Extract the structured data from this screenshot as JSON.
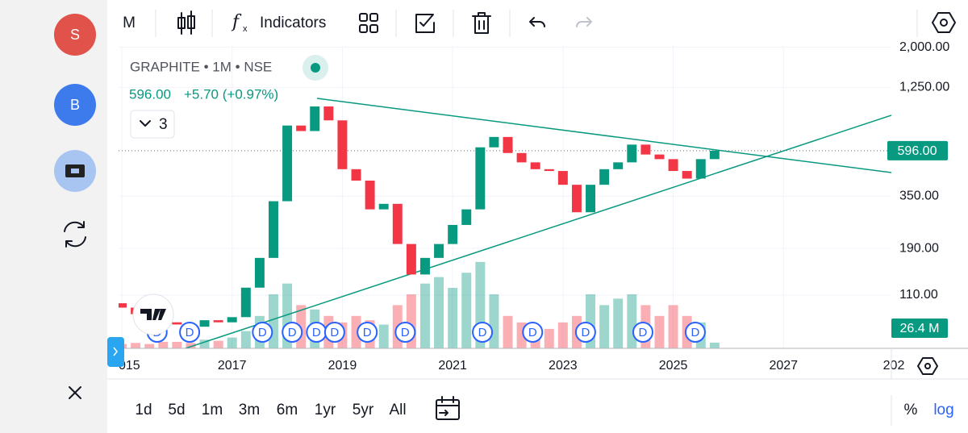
{
  "sidebar": {
    "user_a": "S",
    "user_b": "B"
  },
  "toolbar": {
    "interval": "M",
    "indicators": "Indicators"
  },
  "legend": {
    "symbol": "GRAPHITE • 1M • NSE",
    "price": "596.00",
    "change": "+5.70 (+0.97%)",
    "studies_count": "3"
  },
  "chart_data": {
    "type": "candlestick",
    "x": [
      2015,
      2015.25,
      2015.5,
      2015.75,
      2016,
      2016.25,
      2016.5,
      2016.75,
      2017,
      2017.25,
      2017.5,
      2017.75,
      2018,
      2018.25,
      2018.5,
      2018.75,
      2019,
      2019.25,
      2019.5,
      2019.75,
      2020,
      2020.25,
      2020.5,
      2020.75,
      2021,
      2021.25,
      2021.5,
      2021.75,
      2022,
      2022.25,
      2022.5,
      2022.75,
      2023,
      2023.25,
      2023.5,
      2023.75,
      2024,
      2024.25,
      2024.5,
      2024.75,
      2025,
      2025.25,
      2025.5,
      2025.75
    ],
    "open": [
      100,
      95,
      88,
      85,
      80,
      78,
      76,
      82,
      80,
      85,
      120,
      170,
      330,
      800,
      750,
      1000,
      850,
      480,
      420,
      300,
      320,
      200,
      140,
      170,
      200,
      250,
      300,
      620,
      700,
      580,
      520,
      480,
      470,
      400,
      290,
      400,
      480,
      520,
      640,
      570,
      540,
      470,
      430,
      540
    ],
    "close": [
      95,
      88,
      85,
      80,
      78,
      76,
      82,
      80,
      85,
      120,
      170,
      330,
      800,
      750,
      1000,
      850,
      480,
      420,
      300,
      320,
      200,
      140,
      170,
      200,
      250,
      300,
      620,
      700,
      580,
      520,
      480,
      470,
      400,
      290,
      400,
      480,
      520,
      640,
      570,
      540,
      470,
      430,
      540,
      596
    ],
    "volume": [
      20,
      25,
      20,
      30,
      30,
      25,
      40,
      35,
      50,
      80,
      150,
      250,
      300,
      200,
      180,
      150,
      120,
      150,
      130,
      110,
      200,
      250,
      300,
      330,
      280,
      350,
      400,
      250,
      150,
      120,
      100,
      90,
      120,
      150,
      250,
      200,
      230,
      250,
      200,
      150,
      200,
      150,
      120,
      26.4
    ],
    "volume_label": "26.4 M",
    "vlim": [
      0,
      1400
    ],
    "last_price": {
      "value": 596,
      "label": "596.00"
    },
    "up_color": "#089981",
    "down_color": "#f23645",
    "log_scale": true,
    "grid": true,
    "xlim": [
      2015,
      2029
    ],
    "xticks": [
      {
        "value": 2015,
        "label": "015"
      },
      2017,
      2019,
      2021,
      2023,
      2025,
      2027,
      {
        "value": 2029,
        "label": "202"
      }
    ],
    "ylim": [
      59,
      2030
    ],
    "yticks": [
      {
        "value": 2000,
        "label": "2,000.00"
      },
      {
        "value": 1250,
        "label": "1,250.00"
      },
      {
        "value": 350,
        "label": "350.00"
      },
      {
        "value": 190,
        "label": "190.00"
      },
      {
        "value": 110,
        "label": "110.00"
      }
    ],
    "dividends": {
      "x": [
        2015.64,
        2016.23,
        2017.55,
        2018.09,
        2018.53,
        2018.86,
        2019.45,
        2020.14,
        2021.54,
        2022.45,
        2023.41,
        2024.45,
        2025.4
      ],
      "label": "D"
    }
  },
  "ranges": [
    "1d",
    "5d",
    "1m",
    "3m",
    "6m",
    "1yr",
    "5yr",
    "All"
  ],
  "scale_buttons": {
    "percent": "%",
    "log": "log"
  }
}
